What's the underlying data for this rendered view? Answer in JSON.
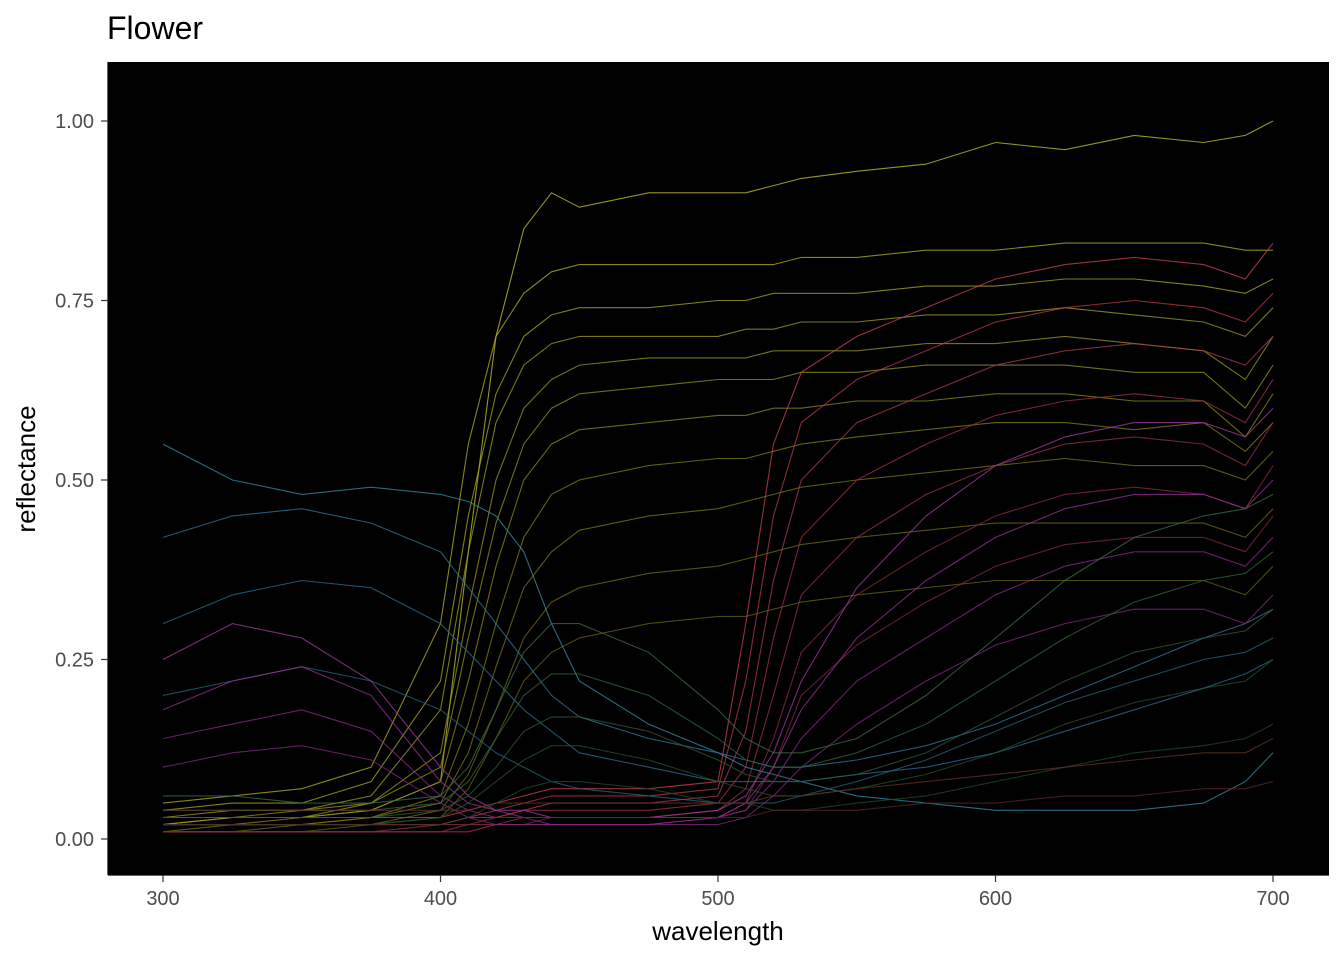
{
  "chart_data": {
    "type": "line",
    "title": "Flower",
    "xlabel": "wavelength",
    "ylabel": "reflectance",
    "xlim": [
      300,
      700
    ],
    "ylim": [
      0,
      1
    ],
    "x_ticks": [
      300,
      400,
      500,
      600,
      700
    ],
    "x_tick_labels": [
      "300",
      "400",
      "500",
      "600",
      "700"
    ],
    "y_ticks": [
      0,
      0.25,
      0.5,
      0.75,
      1.0
    ],
    "y_tick_labels": [
      "0.00",
      "0.25",
      "0.50",
      "0.75",
      "1.00"
    ],
    "panel_background": "#000000",
    "grid": false,
    "legend": "none",
    "x": [
      300,
      325,
      350,
      375,
      400,
      410,
      420,
      430,
      440,
      450,
      475,
      500,
      510,
      520,
      530,
      550,
      575,
      600,
      625,
      650,
      675,
      690,
      700
    ],
    "series": [
      {
        "color": "#c8c832",
        "values": [
          0.02,
          0.03,
          0.03,
          0.04,
          0.08,
          0.4,
          0.7,
          0.85,
          0.9,
          0.88,
          0.9,
          0.9,
          0.9,
          0.91,
          0.92,
          0.93,
          0.94,
          0.97,
          0.96,
          0.98,
          0.97,
          0.98,
          1.0
        ]
      },
      {
        "color": "#b4b428",
        "values": [
          0.05,
          0.06,
          0.07,
          0.1,
          0.3,
          0.55,
          0.7,
          0.76,
          0.79,
          0.8,
          0.8,
          0.8,
          0.8,
          0.8,
          0.81,
          0.81,
          0.82,
          0.82,
          0.83,
          0.83,
          0.83,
          0.82,
          0.82
        ]
      },
      {
        "color": "#aaaa28",
        "values": [
          0.04,
          0.05,
          0.05,
          0.08,
          0.22,
          0.45,
          0.62,
          0.7,
          0.73,
          0.74,
          0.74,
          0.75,
          0.75,
          0.76,
          0.76,
          0.76,
          0.77,
          0.77,
          0.78,
          0.78,
          0.77,
          0.76,
          0.78
        ]
      },
      {
        "color": "#a0a028",
        "values": [
          0.03,
          0.04,
          0.04,
          0.06,
          0.18,
          0.4,
          0.58,
          0.66,
          0.69,
          0.7,
          0.7,
          0.7,
          0.71,
          0.71,
          0.72,
          0.72,
          0.73,
          0.73,
          0.74,
          0.73,
          0.72,
          0.7,
          0.74
        ]
      },
      {
        "color": "#9a9a24",
        "values": [
          0.02,
          0.03,
          0.03,
          0.05,
          0.12,
          0.32,
          0.5,
          0.6,
          0.64,
          0.66,
          0.67,
          0.67,
          0.67,
          0.68,
          0.68,
          0.68,
          0.69,
          0.69,
          0.7,
          0.69,
          0.68,
          0.64,
          0.7
        ]
      },
      {
        "color": "#96961e",
        "values": [
          0.03,
          0.03,
          0.04,
          0.05,
          0.1,
          0.28,
          0.44,
          0.55,
          0.6,
          0.62,
          0.63,
          0.64,
          0.64,
          0.64,
          0.65,
          0.65,
          0.66,
          0.66,
          0.66,
          0.65,
          0.65,
          0.6,
          0.66
        ]
      },
      {
        "color": "#8c8c1e",
        "values": [
          0.02,
          0.02,
          0.03,
          0.04,
          0.08,
          0.22,
          0.38,
          0.5,
          0.55,
          0.57,
          0.58,
          0.59,
          0.59,
          0.6,
          0.6,
          0.61,
          0.61,
          0.62,
          0.62,
          0.61,
          0.61,
          0.56,
          0.62
        ]
      },
      {
        "color": "#828218",
        "values": [
          0.02,
          0.02,
          0.02,
          0.03,
          0.06,
          0.16,
          0.3,
          0.42,
          0.48,
          0.5,
          0.52,
          0.53,
          0.53,
          0.54,
          0.55,
          0.56,
          0.57,
          0.58,
          0.58,
          0.57,
          0.58,
          0.54,
          0.58
        ]
      },
      {
        "color": "#787818",
        "values": [
          0.01,
          0.02,
          0.02,
          0.03,
          0.05,
          0.12,
          0.24,
          0.35,
          0.4,
          0.43,
          0.45,
          0.46,
          0.47,
          0.48,
          0.49,
          0.5,
          0.51,
          0.52,
          0.53,
          0.52,
          0.52,
          0.5,
          0.54
        ]
      },
      {
        "color": "#6e6e14",
        "values": [
          0.01,
          0.01,
          0.02,
          0.02,
          0.04,
          0.09,
          0.18,
          0.28,
          0.33,
          0.35,
          0.37,
          0.38,
          0.39,
          0.4,
          0.41,
          0.42,
          0.43,
          0.44,
          0.44,
          0.44,
          0.44,
          0.42,
          0.46
        ]
      },
      {
        "color": "#646414",
        "values": [
          0.01,
          0.01,
          0.01,
          0.02,
          0.03,
          0.07,
          0.14,
          0.22,
          0.26,
          0.28,
          0.3,
          0.31,
          0.31,
          0.32,
          0.33,
          0.34,
          0.35,
          0.36,
          0.36,
          0.36,
          0.36,
          0.34,
          0.38
        ]
      },
      {
        "color": "#c84650",
        "values": [
          0.03,
          0.03,
          0.03,
          0.03,
          0.03,
          0.04,
          0.05,
          0.06,
          0.07,
          0.07,
          0.07,
          0.08,
          0.3,
          0.55,
          0.65,
          0.7,
          0.74,
          0.78,
          0.8,
          0.81,
          0.8,
          0.78,
          0.83
        ]
      },
      {
        "color": "#b43c46",
        "values": [
          0.02,
          0.02,
          0.02,
          0.02,
          0.02,
          0.03,
          0.04,
          0.05,
          0.06,
          0.06,
          0.06,
          0.07,
          0.22,
          0.45,
          0.58,
          0.64,
          0.68,
          0.72,
          0.74,
          0.75,
          0.74,
          0.72,
          0.76
        ]
      },
      {
        "color": "#aa3c50",
        "values": [
          0.02,
          0.02,
          0.02,
          0.02,
          0.02,
          0.03,
          0.03,
          0.04,
          0.05,
          0.05,
          0.05,
          0.06,
          0.15,
          0.36,
          0.5,
          0.58,
          0.62,
          0.66,
          0.68,
          0.69,
          0.68,
          0.66,
          0.7
        ]
      },
      {
        "color": "#a03246",
        "values": [
          0.01,
          0.01,
          0.01,
          0.01,
          0.02,
          0.02,
          0.03,
          0.04,
          0.04,
          0.04,
          0.04,
          0.05,
          0.1,
          0.28,
          0.42,
          0.5,
          0.55,
          0.59,
          0.61,
          0.62,
          0.61,
          0.58,
          0.64
        ]
      },
      {
        "color": "#963246",
        "values": [
          0.01,
          0.01,
          0.01,
          0.01,
          0.01,
          0.02,
          0.02,
          0.03,
          0.03,
          0.03,
          0.03,
          0.04,
          0.07,
          0.2,
          0.34,
          0.42,
          0.48,
          0.52,
          0.55,
          0.56,
          0.55,
          0.52,
          0.58
        ]
      },
      {
        "color": "#8c2846",
        "values": [
          0.01,
          0.01,
          0.01,
          0.01,
          0.01,
          0.01,
          0.02,
          0.02,
          0.03,
          0.03,
          0.03,
          0.03,
          0.05,
          0.14,
          0.26,
          0.34,
          0.4,
          0.45,
          0.48,
          0.49,
          0.48,
          0.46,
          0.52
        ]
      },
      {
        "color": "#822846",
        "values": [
          0.01,
          0.01,
          0.01,
          0.01,
          0.01,
          0.01,
          0.02,
          0.02,
          0.02,
          0.02,
          0.02,
          0.03,
          0.04,
          0.1,
          0.2,
          0.27,
          0.33,
          0.38,
          0.41,
          0.42,
          0.42,
          0.4,
          0.45
        ]
      },
      {
        "color": "#3c8caa",
        "values": [
          0.55,
          0.5,
          0.48,
          0.49,
          0.48,
          0.47,
          0.45,
          0.4,
          0.3,
          0.22,
          0.16,
          0.12,
          0.1,
          0.09,
          0.08,
          0.06,
          0.05,
          0.04,
          0.04,
          0.04,
          0.05,
          0.08,
          0.12
        ]
      },
      {
        "color": "#3278a0",
        "values": [
          0.42,
          0.45,
          0.46,
          0.44,
          0.4,
          0.35,
          0.3,
          0.25,
          0.2,
          0.17,
          0.14,
          0.12,
          0.11,
          0.1,
          0.1,
          0.11,
          0.13,
          0.16,
          0.2,
          0.24,
          0.28,
          0.3,
          0.32
        ]
      },
      {
        "color": "#2d6e96",
        "values": [
          0.3,
          0.34,
          0.36,
          0.35,
          0.3,
          0.26,
          0.22,
          0.18,
          0.15,
          0.12,
          0.1,
          0.08,
          0.08,
          0.08,
          0.08,
          0.09,
          0.1,
          0.12,
          0.15,
          0.18,
          0.21,
          0.23,
          0.25
        ]
      },
      {
        "color": "#28647d",
        "values": [
          0.2,
          0.22,
          0.24,
          0.22,
          0.18,
          0.15,
          0.12,
          0.1,
          0.08,
          0.07,
          0.06,
          0.05,
          0.05,
          0.05,
          0.06,
          0.08,
          0.11,
          0.15,
          0.19,
          0.22,
          0.25,
          0.26,
          0.28
        ]
      },
      {
        "color": "#a03ca0",
        "values": [
          0.25,
          0.3,
          0.28,
          0.22,
          0.1,
          0.06,
          0.04,
          0.04,
          0.03,
          0.03,
          0.03,
          0.04,
          0.06,
          0.12,
          0.22,
          0.35,
          0.45,
          0.52,
          0.56,
          0.58,
          0.58,
          0.56,
          0.6
        ]
      },
      {
        "color": "#963296",
        "values": [
          0.18,
          0.22,
          0.24,
          0.2,
          0.08,
          0.05,
          0.04,
          0.03,
          0.03,
          0.03,
          0.03,
          0.03,
          0.05,
          0.1,
          0.18,
          0.28,
          0.36,
          0.42,
          0.46,
          0.48,
          0.48,
          0.46,
          0.5
        ]
      },
      {
        "color": "#8c288c",
        "values": [
          0.14,
          0.16,
          0.18,
          0.15,
          0.06,
          0.04,
          0.03,
          0.03,
          0.02,
          0.02,
          0.02,
          0.03,
          0.04,
          0.08,
          0.14,
          0.22,
          0.28,
          0.34,
          0.38,
          0.4,
          0.4,
          0.38,
          0.42
        ]
      },
      {
        "color": "#822882",
        "values": [
          0.1,
          0.12,
          0.13,
          0.11,
          0.05,
          0.03,
          0.02,
          0.02,
          0.02,
          0.02,
          0.02,
          0.02,
          0.03,
          0.06,
          0.1,
          0.16,
          0.22,
          0.27,
          0.3,
          0.32,
          0.32,
          0.3,
          0.34
        ]
      },
      {
        "color": "#3c6e46",
        "values": [
          0.06,
          0.06,
          0.05,
          0.05,
          0.06,
          0.1,
          0.18,
          0.26,
          0.3,
          0.3,
          0.26,
          0.18,
          0.14,
          0.12,
          0.12,
          0.14,
          0.2,
          0.28,
          0.36,
          0.42,
          0.45,
          0.46,
          0.48
        ]
      },
      {
        "color": "#32643c",
        "values": [
          0.04,
          0.04,
          0.04,
          0.04,
          0.05,
          0.08,
          0.14,
          0.2,
          0.23,
          0.23,
          0.2,
          0.14,
          0.11,
          0.1,
          0.1,
          0.12,
          0.16,
          0.22,
          0.28,
          0.33,
          0.36,
          0.37,
          0.4
        ]
      },
      {
        "color": "#2d5a3c",
        "values": [
          0.03,
          0.03,
          0.03,
          0.03,
          0.04,
          0.06,
          0.1,
          0.15,
          0.17,
          0.17,
          0.15,
          0.11,
          0.09,
          0.08,
          0.08,
          0.09,
          0.12,
          0.17,
          0.22,
          0.26,
          0.28,
          0.29,
          0.32
        ]
      },
      {
        "color": "#285032",
        "values": [
          0.02,
          0.02,
          0.02,
          0.02,
          0.03,
          0.05,
          0.08,
          0.11,
          0.13,
          0.13,
          0.11,
          0.08,
          0.07,
          0.06,
          0.06,
          0.07,
          0.09,
          0.12,
          0.16,
          0.19,
          0.21,
          0.22,
          0.25
        ]
      },
      {
        "color": "#234632",
        "values": [
          0.02,
          0.02,
          0.02,
          0.02,
          0.02,
          0.03,
          0.05,
          0.07,
          0.08,
          0.08,
          0.07,
          0.05,
          0.05,
          0.04,
          0.04,
          0.05,
          0.06,
          0.08,
          0.1,
          0.12,
          0.13,
          0.14,
          0.16
        ]
      },
      {
        "color": "#643228",
        "values": [
          0.04,
          0.04,
          0.04,
          0.04,
          0.04,
          0.04,
          0.05,
          0.05,
          0.05,
          0.05,
          0.05,
          0.05,
          0.05,
          0.06,
          0.06,
          0.07,
          0.08,
          0.09,
          0.1,
          0.11,
          0.12,
          0.12,
          0.14
        ]
      },
      {
        "color": "#5a2828",
        "values": [
          0.02,
          0.02,
          0.02,
          0.02,
          0.02,
          0.02,
          0.03,
          0.03,
          0.03,
          0.03,
          0.03,
          0.03,
          0.03,
          0.04,
          0.04,
          0.04,
          0.05,
          0.05,
          0.06,
          0.06,
          0.07,
          0.07,
          0.08
        ]
      }
    ]
  }
}
